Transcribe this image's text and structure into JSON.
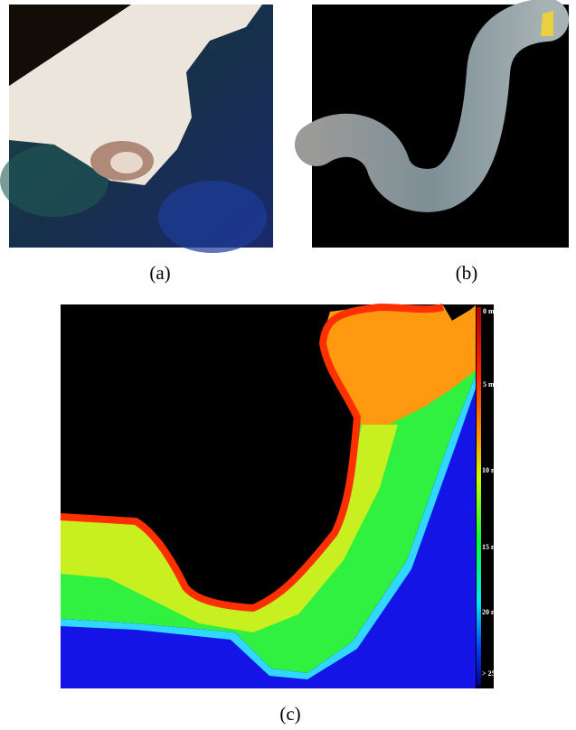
{
  "panels": [
    {
      "label": "(a)"
    },
    {
      "label": "(b)"
    },
    {
      "label": "(c)",
      "colorbar": {
        "labels": [
          "0 m",
          "5 m",
          "10 m",
          "15 m",
          "20 m",
          "> 25 m"
        ]
      }
    }
  ]
}
